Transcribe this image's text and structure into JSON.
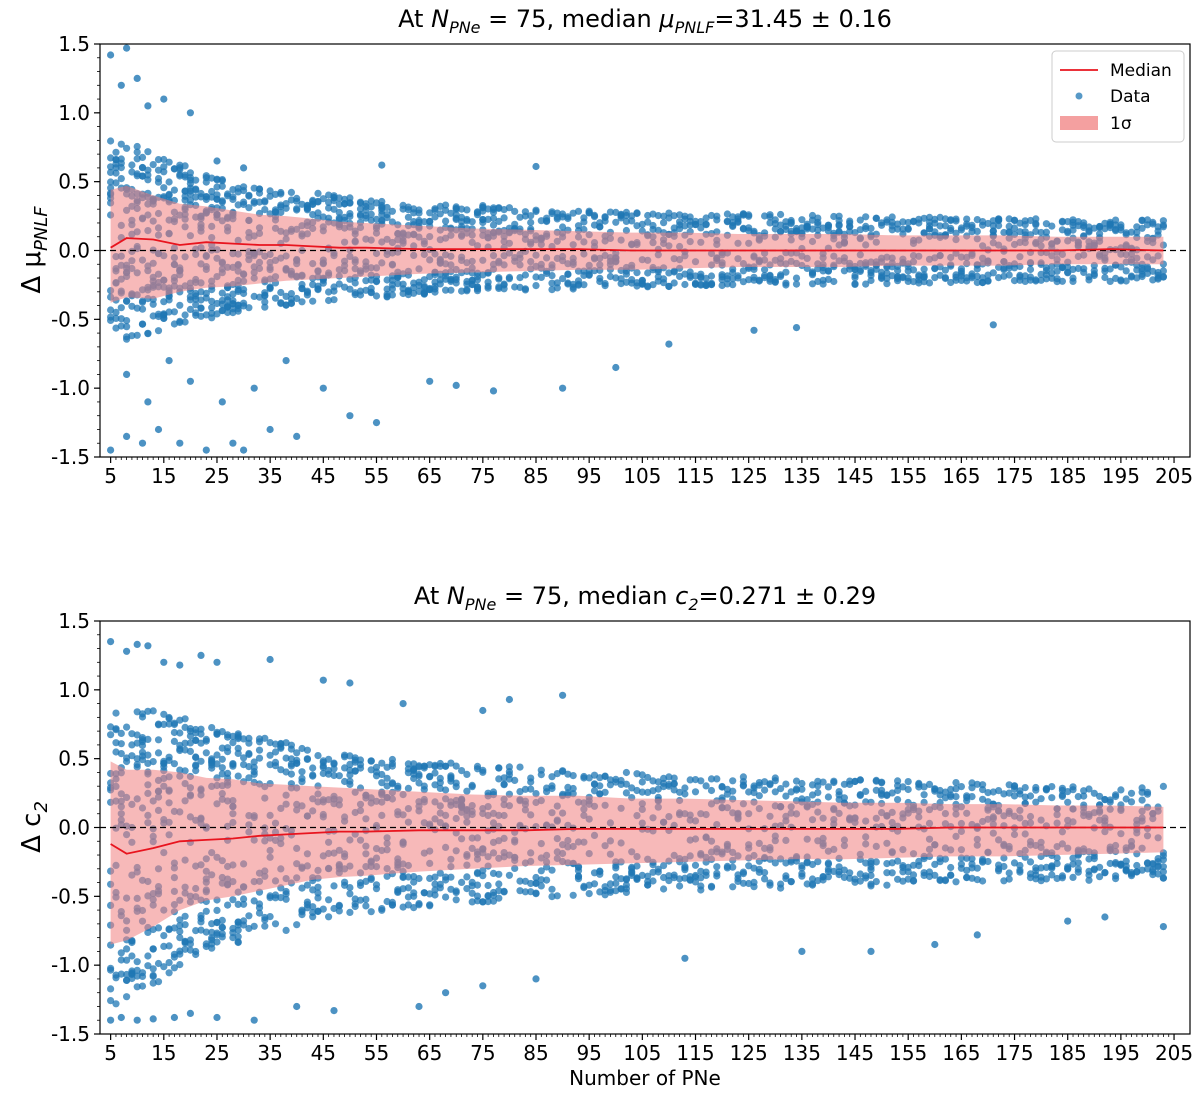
{
  "colors": {
    "points": "#1f77b4",
    "median": "#e8141e",
    "band": "#f08080",
    "zero_line": "#000000",
    "text": "#000000"
  },
  "chart_data": [
    {
      "type": "scatter",
      "title_prefix": "At ",
      "title_sym": "N",
      "title_sub": "PNe",
      "title_eq": " = 75, median ",
      "title_param": "μ",
      "title_param_sub": "PNLF",
      "title_tail": "=31.45 ± 0.16",
      "ylabel": "Δ μ",
      "ylabel_sub": "PNLF",
      "xlabel": "",
      "xlim": [
        3,
        208
      ],
      "ylim": [
        -1.5,
        1.5
      ],
      "x_ticks": [
        5,
        15,
        25,
        35,
        45,
        55,
        65,
        75,
        85,
        95,
        105,
        115,
        125,
        135,
        145,
        155,
        165,
        175,
        185,
        195,
        205
      ],
      "y_ticks": [
        "-1.5",
        "-1.0",
        "-0.5",
        "0.0",
        "0.5",
        "1.0",
        "1.5"
      ],
      "y_tick_values": [
        -1.5,
        -1.0,
        -0.5,
        0.0,
        0.5,
        1.0,
        1.5
      ],
      "zero_line": 0.0,
      "legend_position": "top-right",
      "legend": [
        "Median",
        "Data",
        "1σ"
      ],
      "x": [
        5,
        8,
        13,
        18,
        23,
        28,
        33,
        38,
        43,
        48,
        53,
        63,
        73,
        83,
        93,
        103,
        113,
        123,
        133,
        143,
        153,
        163,
        173,
        183,
        193,
        203
      ],
      "median": [
        0.02,
        0.09,
        0.08,
        0.04,
        0.06,
        0.05,
        0.04,
        0.04,
        0.03,
        0.02,
        0.02,
        0.01,
        0.01,
        0.01,
        0.01,
        0.0,
        0.0,
        0.0,
        0.0,
        0.0,
        0.0,
        0.0,
        0.0,
        0.0,
        0.01,
        0.0
      ],
      "upper": [
        0.44,
        0.47,
        0.4,
        0.34,
        0.32,
        0.29,
        0.26,
        0.25,
        0.23,
        0.21,
        0.2,
        0.18,
        0.16,
        0.15,
        0.14,
        0.13,
        0.13,
        0.12,
        0.12,
        0.12,
        0.11,
        0.11,
        0.11,
        0.1,
        0.1,
        0.1
      ],
      "lower": [
        -0.38,
        -0.34,
        -0.35,
        -0.3,
        -0.27,
        -0.26,
        -0.24,
        -0.22,
        -0.21,
        -0.2,
        -0.19,
        -0.17,
        -0.16,
        -0.15,
        -0.14,
        -0.14,
        -0.13,
        -0.12,
        -0.12,
        -0.12,
        -0.11,
        -0.11,
        -0.11,
        -0.1,
        -0.1,
        -0.1
      ],
      "data_upper": [
        0.8,
        0.8,
        0.7,
        0.64,
        0.55,
        0.5,
        0.47,
        0.44,
        0.42,
        0.4,
        0.38,
        0.35,
        0.33,
        0.32,
        0.3,
        0.29,
        0.28,
        0.27,
        0.26,
        0.25,
        0.25,
        0.24,
        0.24,
        0.23,
        0.23,
        0.22
      ],
      "data_lower": [
        -0.7,
        -0.65,
        -0.6,
        -0.55,
        -0.5,
        -0.46,
        -0.42,
        -0.4,
        -0.38,
        -0.36,
        -0.35,
        -0.32,
        -0.3,
        -0.29,
        -0.28,
        -0.27,
        -0.26,
        -0.26,
        -0.25,
        -0.25,
        -0.24,
        -0.24,
        -0.23,
        -0.23,
        -0.23,
        -0.22
      ],
      "outliers": [
        [
          5,
          1.42
        ],
        [
          8,
          1.47
        ],
        [
          10,
          1.25
        ],
        [
          12,
          1.05
        ],
        [
          7,
          1.2
        ],
        [
          15,
          1.1
        ],
        [
          20,
          1.0
        ],
        [
          25,
          0.65
        ],
        [
          30,
          0.6
        ],
        [
          56,
          0.62
        ],
        [
          85,
          0.61
        ],
        [
          5,
          -1.45
        ],
        [
          8,
          -1.35
        ],
        [
          11,
          -1.4
        ],
        [
          14,
          -1.3
        ],
        [
          18,
          -1.4
        ],
        [
          23,
          -1.45
        ],
        [
          28,
          -1.4
        ],
        [
          30,
          -1.45
        ],
        [
          35,
          -1.3
        ],
        [
          40,
          -1.35
        ],
        [
          45,
          -1.0
        ],
        [
          50,
          -1.2
        ],
        [
          55,
          -1.25
        ],
        [
          65,
          -0.95
        ],
        [
          70,
          -0.98
        ],
        [
          77,
          -1.02
        ],
        [
          90,
          -1.0
        ],
        [
          100,
          -0.85
        ],
        [
          110,
          -0.68
        ],
        [
          126,
          -0.58
        ],
        [
          134,
          -0.56
        ],
        [
          171,
          -0.54
        ],
        [
          8,
          -0.9
        ],
        [
          12,
          -1.1
        ],
        [
          16,
          -0.8
        ],
        [
          20,
          -0.95
        ],
        [
          26,
          -1.1
        ],
        [
          32,
          -1.0
        ],
        [
          38,
          -0.8
        ]
      ]
    },
    {
      "type": "scatter",
      "title_prefix": "At ",
      "title_sym": "N",
      "title_sub": "PNe",
      "title_eq": " = 75, median ",
      "title_param": "c",
      "title_param_sub": "2",
      "title_tail": "=0.271 ± 0.29",
      "ylabel": "Δ c",
      "ylabel_sub": "2",
      "xlabel": "Number of PNe",
      "xlim": [
        3,
        208
      ],
      "ylim": [
        -1.5,
        1.5
      ],
      "x_ticks": [
        5,
        15,
        25,
        35,
        45,
        55,
        65,
        75,
        85,
        95,
        105,
        115,
        125,
        135,
        145,
        155,
        165,
        175,
        185,
        195,
        205
      ],
      "y_ticks": [
        "-1.5",
        "-1.0",
        "-0.5",
        "0.0",
        "0.5",
        "1.0",
        "1.5"
      ],
      "y_tick_values": [
        -1.5,
        -1.0,
        -0.5,
        0.0,
        0.5,
        1.0,
        1.5
      ],
      "zero_line": 0.0,
      "legend_position": "none",
      "legend": [],
      "x": [
        5,
        8,
        13,
        18,
        23,
        28,
        33,
        38,
        43,
        48,
        53,
        63,
        73,
        83,
        93,
        103,
        113,
        123,
        133,
        143,
        153,
        163,
        173,
        183,
        193,
        203
      ],
      "median": [
        -0.12,
        -0.19,
        -0.15,
        -0.1,
        -0.09,
        -0.08,
        -0.06,
        -0.05,
        -0.04,
        -0.03,
        -0.03,
        -0.02,
        -0.02,
        -0.02,
        -0.01,
        -0.01,
        -0.01,
        -0.01,
        -0.01,
        -0.01,
        -0.01,
        0.0,
        0.0,
        0.0,
        0.0,
        0.0
      ],
      "upper": [
        0.48,
        0.42,
        0.42,
        0.4,
        0.36,
        0.35,
        0.32,
        0.31,
        0.3,
        0.29,
        0.28,
        0.26,
        0.24,
        0.23,
        0.23,
        0.21,
        0.21,
        0.2,
        0.19,
        0.18,
        0.18,
        0.17,
        0.17,
        0.16,
        0.16,
        0.15
      ],
      "lower": [
        -0.85,
        -0.82,
        -0.72,
        -0.6,
        -0.53,
        -0.5,
        -0.46,
        -0.42,
        -0.38,
        -0.36,
        -0.35,
        -0.32,
        -0.3,
        -0.28,
        -0.27,
        -0.26,
        -0.25,
        -0.24,
        -0.23,
        -0.23,
        -0.22,
        -0.21,
        -0.21,
        -0.2,
        -0.19,
        -0.18
      ],
      "data_upper": [
        0.9,
        0.88,
        0.85,
        0.8,
        0.75,
        0.7,
        0.66,
        0.62,
        0.58,
        0.55,
        0.52,
        0.48,
        0.46,
        0.44,
        0.42,
        0.4,
        0.38,
        0.37,
        0.36,
        0.35,
        0.34,
        0.33,
        0.32,
        0.31,
        0.3,
        0.3
      ],
      "data_lower": [
        -1.3,
        -1.25,
        -1.15,
        -1.0,
        -0.9,
        -0.85,
        -0.8,
        -0.75,
        -0.7,
        -0.66,
        -0.63,
        -0.58,
        -0.55,
        -0.52,
        -0.5,
        -0.48,
        -0.46,
        -0.45,
        -0.44,
        -0.43,
        -0.42,
        -0.41,
        -0.4,
        -0.39,
        -0.38,
        -0.37
      ],
      "outliers": [
        [
          5,
          1.35
        ],
        [
          8,
          1.28
        ],
        [
          10,
          1.33
        ],
        [
          12,
          1.32
        ],
        [
          15,
          1.2
        ],
        [
          18,
          1.18
        ],
        [
          22,
          1.25
        ],
        [
          25,
          1.2
        ],
        [
          35,
          1.22
        ],
        [
          45,
          1.07
        ],
        [
          50,
          1.05
        ],
        [
          90,
          0.96
        ],
        [
          80,
          0.93
        ],
        [
          60,
          0.9
        ],
        [
          75,
          0.85
        ],
        [
          5,
          -1.4
        ],
        [
          7,
          -1.38
        ],
        [
          10,
          -1.4
        ],
        [
          13,
          -1.39
        ],
        [
          17,
          -1.38
        ],
        [
          20,
          -1.35
        ],
        [
          25,
          -1.38
        ],
        [
          32,
          -1.4
        ],
        [
          40,
          -1.3
        ],
        [
          47,
          -1.33
        ],
        [
          63,
          -1.3
        ],
        [
          68,
          -1.2
        ],
        [
          75,
          -1.15
        ],
        [
          85,
          -1.1
        ],
        [
          113,
          -0.95
        ],
        [
          135,
          -0.9
        ],
        [
          148,
          -0.9
        ],
        [
          160,
          -0.85
        ],
        [
          168,
          -0.78
        ],
        [
          203,
          -0.72
        ],
        [
          192,
          -0.65
        ],
        [
          185,
          -0.68
        ]
      ]
    }
  ]
}
